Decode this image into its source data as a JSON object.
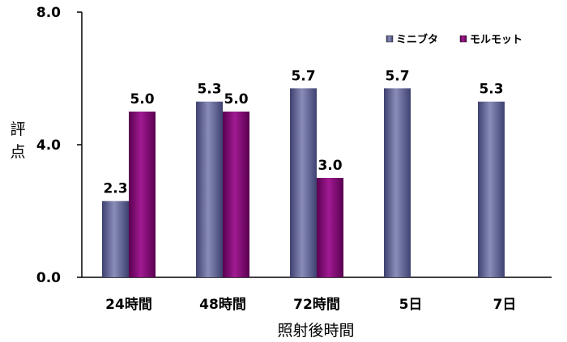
{
  "chart_data": {
    "type": "bar",
    "categories": [
      "24時間",
      "48時間",
      "72時間",
      "5日",
      "7日"
    ],
    "series": [
      {
        "name": "ミニブタ",
        "color": "#5b5f8c",
        "values": [
          2.3,
          5.3,
          5.7,
          5.7,
          5.3
        ],
        "labels": [
          "2.3",
          "5.3",
          "5.7",
          "5.7",
          "5.3"
        ]
      },
      {
        "name": "モルモット",
        "color": "#7a0a6e",
        "values": [
          5.0,
          5.0,
          3.0,
          null,
          null
        ],
        "labels": [
          "5.0",
          "5.0",
          "3.0",
          null,
          null
        ]
      }
    ],
    "xlabel": "照射後時間",
    "ylabel": [
      "評",
      "点"
    ],
    "ylim": [
      0,
      8
    ],
    "yticks": [
      "0.0",
      "4.0",
      "8.0"
    ],
    "ytick_values": [
      0,
      4,
      8
    ],
    "grid": false,
    "legend_position": "top-right"
  }
}
